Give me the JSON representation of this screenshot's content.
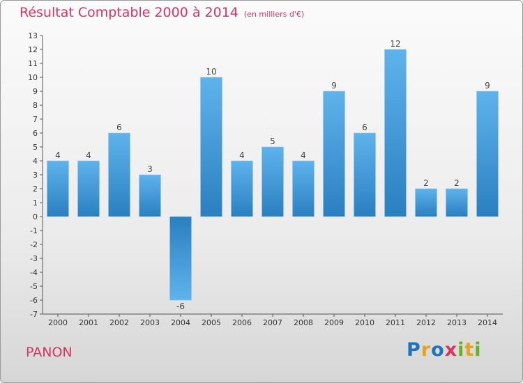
{
  "header": {
    "title": "Résultat Comptable 2000 à 2014",
    "subtitle": "(en milliers d'€)"
  },
  "footer": {
    "commune": "PANON",
    "logo_letters": [
      "P",
      "r",
      "o",
      "x",
      "i",
      "t",
      "i"
    ]
  },
  "colors": {
    "title": "#d8345f",
    "bar_light": "#5fb3ec",
    "bar_dark": "#2a7fc0",
    "logo": [
      "#1e73be",
      "#e8a21a",
      "#1e73be",
      "#d8345f",
      "#6ab023",
      "#e8a21a",
      "#6ab023"
    ]
  },
  "chart_data": {
    "type": "bar",
    "title": "Résultat Comptable 2000 à 2014",
    "xlabel": "",
    "ylabel": "",
    "categories": [
      "2000",
      "2001",
      "2002",
      "2003",
      "2004",
      "2005",
      "2006",
      "2007",
      "2008",
      "2009",
      "2010",
      "2011",
      "2012",
      "2013",
      "2014"
    ],
    "values": [
      4,
      4,
      6,
      3,
      -6,
      10,
      4,
      5,
      4,
      9,
      6,
      12,
      2,
      2,
      9
    ],
    "ylim": [
      -7,
      13
    ],
    "yticks": [
      "-7",
      "-6",
      "-5",
      "-4",
      "-3",
      "-2",
      "-1",
      "0",
      "1",
      "2",
      "3",
      "4",
      "5",
      "6",
      "7",
      "8",
      "9",
      "10",
      "11",
      "12",
      "13"
    ],
    "data_labels": [
      "4",
      "4",
      "6",
      "3",
      "-6",
      "10",
      "4",
      "5",
      "4",
      "9",
      "6",
      "12",
      "2",
      "2",
      "9"
    ],
    "grid": false
  }
}
